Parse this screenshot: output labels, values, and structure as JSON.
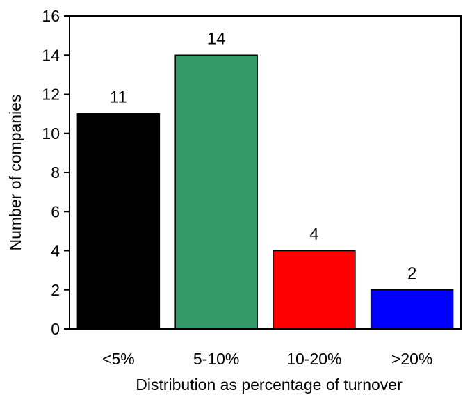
{
  "chart_data": {
    "type": "bar",
    "title": "",
    "xlabel": "Distribution as percentage of turnover",
    "ylabel": "Number of companies",
    "categories": [
      "<5%",
      "5-10%",
      "10-20%",
      ">20%"
    ],
    "values": [
      11,
      14,
      4,
      2
    ],
    "data_labels": [
      "11",
      "14",
      "4",
      "2"
    ],
    "colors": [
      "#000000",
      "#339966",
      "#ff0000",
      "#0000ff"
    ],
    "ylim": [
      0,
      16
    ],
    "yticks": [
      0,
      2,
      4,
      6,
      8,
      10,
      12,
      14,
      16
    ],
    "grid": false,
    "legend": "none"
  }
}
